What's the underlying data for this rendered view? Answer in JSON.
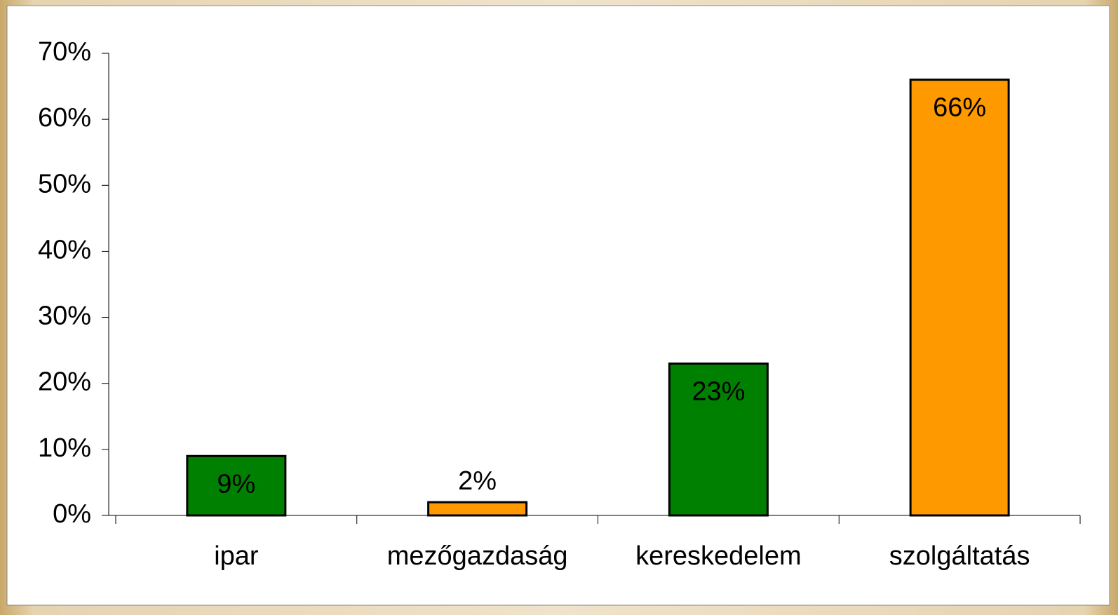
{
  "chart_data": {
    "type": "bar",
    "categories": [
      "ipar",
      "mezőgazdaság",
      "kereskedelem",
      "szolgáltatás"
    ],
    "values": [
      9,
      2,
      23,
      66
    ],
    "value_labels": [
      "9%",
      "2%",
      "23%",
      "66%"
    ],
    "colors": [
      "#008000",
      "#ff9900",
      "#008000",
      "#ff9900"
    ],
    "ylim": [
      0,
      70
    ],
    "yticks": [
      {
        "value": 0,
        "label": "0%"
      },
      {
        "value": 10,
        "label": "10%"
      },
      {
        "value": 20,
        "label": "20%"
      },
      {
        "value": 30,
        "label": "30%"
      },
      {
        "value": 40,
        "label": "40%"
      },
      {
        "value": 50,
        "label": "50%"
      },
      {
        "value": 60,
        "label": "60%"
      },
      {
        "value": 70,
        "label": "70%"
      }
    ],
    "grid": false
  }
}
